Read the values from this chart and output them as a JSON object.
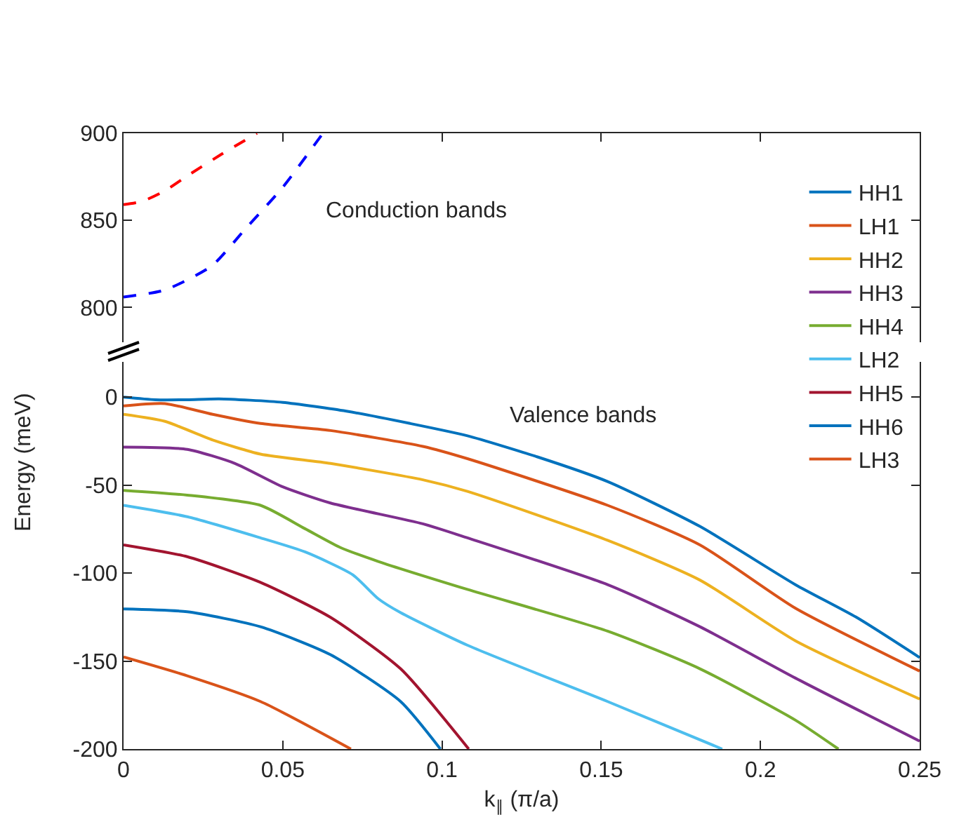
{
  "chart_data": [
    {
      "type": "line",
      "xlim": [
        0,
        0.25
      ],
      "xticks": [
        0,
        0.05,
        0.1,
        0.15,
        0.2,
        0.25
      ],
      "ylim": [
        780,
        900
      ],
      "yticks": [
        800,
        850,
        900
      ],
      "tick_labels": "y",
      "line_style": "dashed",
      "annotations": [
        "Conduction bands"
      ],
      "series": [
        {
          "color": "#ff0000",
          "x": [
            0,
            0.006,
            0.013,
            0.0204,
            0.0308,
            0.0419
          ],
          "values": [
            859,
            861,
            867,
            876,
            888,
            900
          ]
        },
        {
          "color": "#0000ff",
          "x": [
            0,
            0.013,
            0.0278,
            0.0382,
            0.05,
            0.0626
          ],
          "values": [
            806,
            810,
            824,
            845,
            869,
            900
          ]
        }
      ]
    },
    {
      "type": "line",
      "xlabel": "k$_{∥}$ (π/a)",
      "ylabel": "Energy (meV)",
      "xlim": [
        0,
        0.25
      ],
      "xticks": [
        0,
        0.05,
        0.1,
        0.15,
        0.2,
        0.25
      ],
      "ylim": [
        -200,
        20
      ],
      "yticks": [
        -200,
        -150,
        -100,
        -50,
        0
      ],
      "legend": "top right",
      "line_style": "solid",
      "annotations": [
        "Valence bands"
      ],
      "series": [
        {
          "name": "HH1",
          "color": "#0072bd",
          "x": [
            0,
            0.01,
            0.02,
            0.03,
            0.05,
            0.07,
            0.09,
            0.108,
            0.13,
            0.152,
            0.181,
            0.211,
            0.23,
            0.25
          ],
          "values": [
            0,
            -1.5,
            -1.5,
            -1,
            -3,
            -8,
            -15,
            -22,
            -34,
            -48,
            -73.5,
            -106.6,
            -125,
            -148
          ]
        },
        {
          "name": "LH1",
          "color": "#d95319",
          "x": [
            0,
            0.013,
            0.028,
            0.043,
            0.065,
            0.094,
            0.108,
            0.152,
            0.181,
            0.211,
            0.25
          ],
          "values": [
            -5,
            -3.7,
            -9.8,
            -15,
            -19,
            -28,
            -35,
            -61.5,
            -84,
            -120,
            -155.7
          ]
        },
        {
          "name": "HH2",
          "color": "#edb120",
          "x": [
            0,
            0.013,
            0.028,
            0.043,
            0.065,
            0.094,
            0.108,
            0.152,
            0.181,
            0.211,
            0.25
          ],
          "values": [
            -9.8,
            -13.8,
            -24.4,
            -32.4,
            -37.7,
            -47,
            -53.6,
            -81.4,
            -104,
            -138.5,
            -171.6
          ]
        },
        {
          "name": "HH3",
          "color": "#7e2f8e",
          "x": [
            0,
            0.02,
            0.035,
            0.05,
            0.065,
            0.094,
            0.108,
            0.152,
            0.181,
            0.211,
            0.25
          ],
          "values": [
            -28.4,
            -29.7,
            -37.7,
            -51,
            -60.2,
            -72,
            -80,
            -106.6,
            -130.5,
            -159.7,
            -195.5
          ]
        },
        {
          "name": "HH4",
          "color": "#77ac30",
          "x": [
            0,
            0.02,
            0.043,
            0.057,
            0.068,
            0.08,
            0.108,
            0.152,
            0.181,
            0.211,
            0.2245
          ],
          "values": [
            -53,
            -55.7,
            -61.5,
            -74.8,
            -85.4,
            -93.4,
            -109.3,
            -133,
            -154.4,
            -183.6,
            -200
          ]
        },
        {
          "name": "LH2",
          "color": "#4dbeee",
          "x": [
            0,
            0.02,
            0.043,
            0.057,
            0.072,
            0.08,
            0.087,
            0.108,
            0.152,
            0.188
          ],
          "values": [
            -61.5,
            -68,
            -80,
            -88,
            -101,
            -114.6,
            -122.5,
            -141,
            -173,
            -200
          ]
        },
        {
          "name": "HH5",
          "color": "#a2142f",
          "x": [
            0,
            0.02,
            0.043,
            0.065,
            0.087,
            0.1084
          ],
          "values": [
            -84,
            -90.7,
            -105.3,
            -125.2,
            -154.4,
            -200
          ]
        },
        {
          "name": "HH6",
          "color": "#0072bd",
          "x": [
            0,
            0.02,
            0.043,
            0.065,
            0.087,
            0.0995
          ],
          "values": [
            -120.4,
            -122,
            -130.5,
            -146.4,
            -173,
            -200
          ]
        },
        {
          "name": "LH3",
          "color": "#d95319",
          "x": [
            0,
            0.02,
            0.043,
            0.0714
          ],
          "values": [
            -147.7,
            -158.4,
            -173,
            -200
          ]
        }
      ]
    }
  ]
}
